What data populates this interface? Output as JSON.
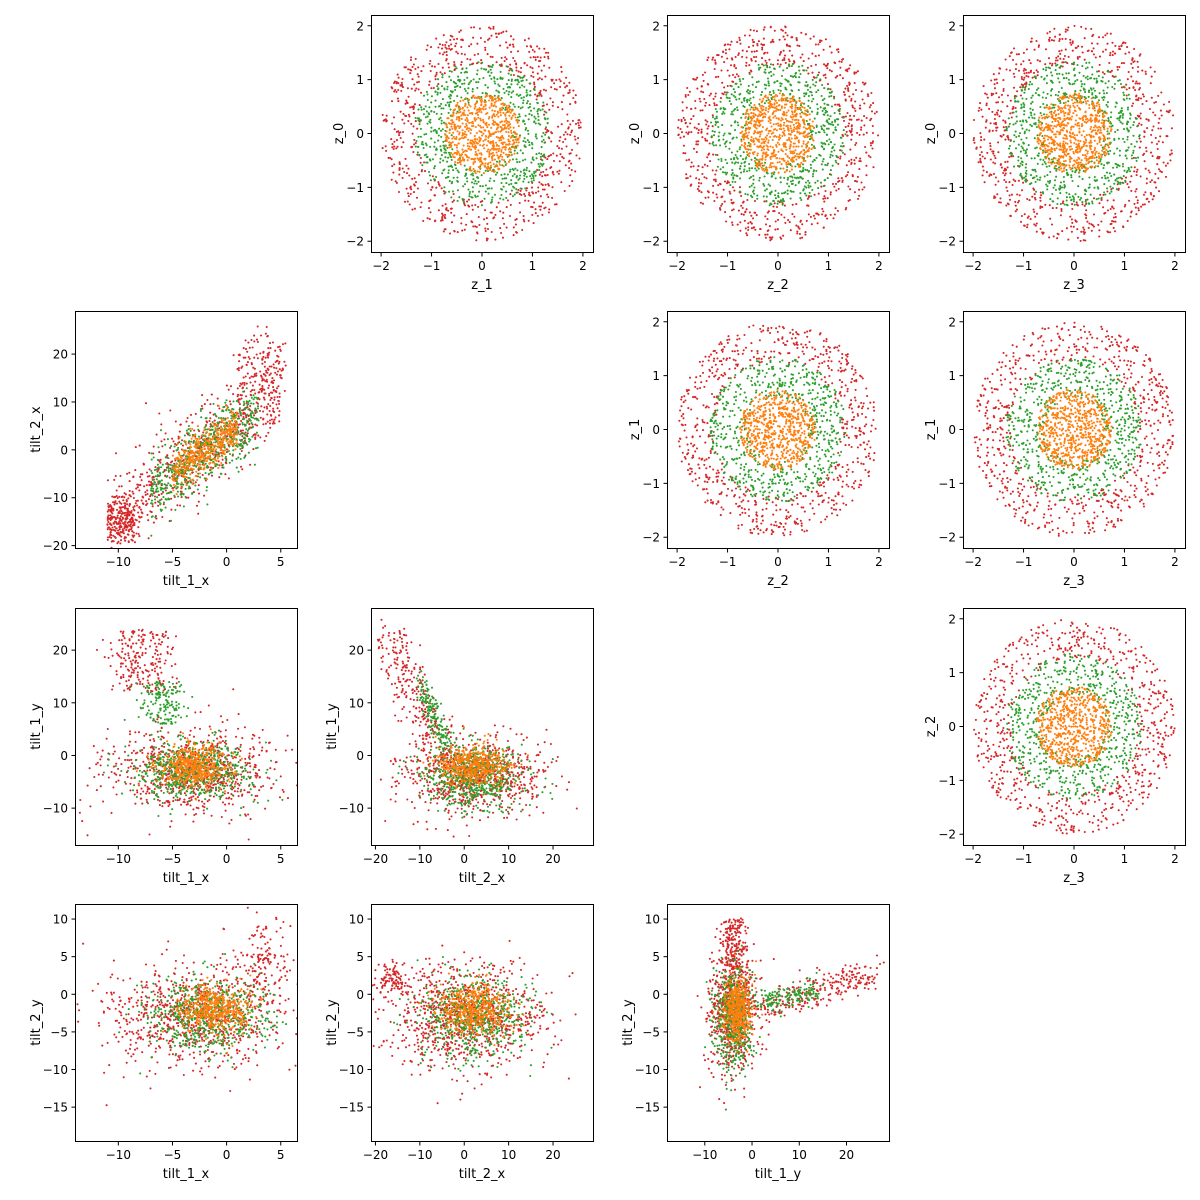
{
  "colors": {
    "outer_ring": "#d62728",
    "middle_ring": "#2ca02c",
    "inner_core": "#ff7f0e"
  },
  "chart_data": [
    {
      "panel": "row0-col1",
      "type": "scatter",
      "xlabel": "z_1",
      "ylabel": "z_0",
      "xlim": [
        -2.2,
        2.2
      ],
      "ylim": [
        -2.2,
        2.2
      ],
      "xticks": [
        -2,
        -1,
        0,
        1,
        2
      ],
      "yticks": [
        -2,
        -1,
        0,
        1,
        2
      ],
      "xtick_labels": [
        "−2",
        "−1",
        "0",
        "1",
        "2"
      ],
      "ytick_labels": [
        "−2",
        "−1",
        "0",
        "1",
        "2"
      ],
      "distribution": "ring",
      "seed": 11
    },
    {
      "panel": "row0-col2",
      "type": "scatter",
      "xlabel": "z_2",
      "ylabel": "z_0",
      "xlim": [
        -2.2,
        2.2
      ],
      "ylim": [
        -2.2,
        2.2
      ],
      "xticks": [
        -2,
        -1,
        0,
        1,
        2
      ],
      "yticks": [
        -2,
        -1,
        0,
        1,
        2
      ],
      "xtick_labels": [
        "−2",
        "−1",
        "0",
        "1",
        "2"
      ],
      "ytick_labels": [
        "−2",
        "−1",
        "0",
        "1",
        "2"
      ],
      "distribution": "ring",
      "seed": 12
    },
    {
      "panel": "row0-col3",
      "type": "scatter",
      "xlabel": "z_3",
      "ylabel": "z_0",
      "xlim": [
        -2.2,
        2.2
      ],
      "ylim": [
        -2.2,
        2.2
      ],
      "xticks": [
        -2,
        -1,
        0,
        1,
        2
      ],
      "yticks": [
        -2,
        -1,
        0,
        1,
        2
      ],
      "xtick_labels": [
        "−2",
        "−1",
        "0",
        "1",
        "2"
      ],
      "ytick_labels": [
        "−2",
        "−1",
        "0",
        "1",
        "2"
      ],
      "distribution": "ring",
      "seed": 13
    },
    {
      "panel": "row1-col0",
      "type": "scatter",
      "xlabel": "tilt_1_x",
      "ylabel": "tilt_2_x",
      "xlim": [
        -14,
        6.5
      ],
      "ylim": [
        -20.5,
        29
      ],
      "xticks": [
        -10,
        -5,
        0,
        5
      ],
      "yticks": [
        -20,
        -10,
        0,
        10,
        20
      ],
      "xtick_labels": [
        "−10",
        "−5",
        "0",
        "5"
      ],
      "ytick_labels": [
        "−20",
        "−10",
        "0",
        "10",
        "20"
      ],
      "distribution": "diag",
      "seed": 21
    },
    {
      "panel": "row1-col2",
      "type": "scatter",
      "xlabel": "z_2",
      "ylabel": "z_1",
      "xlim": [
        -2.2,
        2.2
      ],
      "ylim": [
        -2.2,
        2.2
      ],
      "xticks": [
        -2,
        -1,
        0,
        1,
        2
      ],
      "yticks": [
        -2,
        -1,
        0,
        1,
        2
      ],
      "xtick_labels": [
        "−2",
        "−1",
        "0",
        "1",
        "2"
      ],
      "ytick_labels": [
        "−2",
        "−1",
        "0",
        "1",
        "2"
      ],
      "distribution": "ring",
      "seed": 22
    },
    {
      "panel": "row1-col3",
      "type": "scatter",
      "xlabel": "z_3",
      "ylabel": "z_1",
      "xlim": [
        -2.2,
        2.2
      ],
      "ylim": [
        -2.2,
        2.2
      ],
      "xticks": [
        -2,
        -1,
        0,
        1,
        2
      ],
      "yticks": [
        -2,
        -1,
        0,
        1,
        2
      ],
      "xtick_labels": [
        "−2",
        "−1",
        "0",
        "1",
        "2"
      ],
      "ytick_labels": [
        "−2",
        "−1",
        "0",
        "1",
        "2"
      ],
      "distribution": "ring",
      "seed": 23
    },
    {
      "panel": "row2-col0",
      "type": "scatter",
      "xlabel": "tilt_1_x",
      "ylabel": "tilt_1_y",
      "xlim": [
        -14,
        6.5
      ],
      "ylim": [
        -17,
        28
      ],
      "xticks": [
        -10,
        -5,
        0,
        5
      ],
      "yticks": [
        -10,
        0,
        10,
        20
      ],
      "xtick_labels": [
        "−10",
        "−5",
        "0",
        "5"
      ],
      "ytick_labels": [
        "−10",
        "0",
        "10",
        "20"
      ],
      "distribution": "plume1",
      "seed": 31
    },
    {
      "panel": "row2-col1",
      "type": "scatter",
      "xlabel": "tilt_2_x",
      "ylabel": "tilt_1_y",
      "xlim": [
        -21,
        29
      ],
      "ylim": [
        -17,
        28
      ],
      "xticks": [
        -20,
        -10,
        0,
        10,
        20
      ],
      "yticks": [
        -10,
        0,
        10,
        20
      ],
      "xtick_labels": [
        "−20",
        "−10",
        "0",
        "10",
        "20"
      ],
      "ytick_labels": [
        "−10",
        "0",
        "10",
        "20"
      ],
      "distribution": "plume2",
      "seed": 32
    },
    {
      "panel": "row2-col3",
      "type": "scatter",
      "xlabel": "z_3",
      "ylabel": "z_2",
      "xlim": [
        -2.2,
        2.2
      ],
      "ylim": [
        -2.2,
        2.2
      ],
      "xticks": [
        -2,
        -1,
        0,
        1,
        2
      ],
      "yticks": [
        -2,
        -1,
        0,
        1,
        2
      ],
      "xtick_labels": [
        "−2",
        "−1",
        "0",
        "1",
        "2"
      ],
      "ytick_labels": [
        "−2",
        "−1",
        "0",
        "1",
        "2"
      ],
      "distribution": "ring",
      "seed": 33
    },
    {
      "panel": "row3-col0",
      "type": "scatter",
      "xlabel": "tilt_1_x",
      "ylabel": "tilt_2_y",
      "xlim": [
        -14,
        6.5
      ],
      "ylim": [
        -19.5,
        12
      ],
      "xticks": [
        -10,
        -5,
        0,
        5
      ],
      "yticks": [
        -15,
        -10,
        -5,
        0,
        5,
        10
      ],
      "xtick_labels": [
        "−10",
        "−5",
        "0",
        "5"
      ],
      "ytick_labels": [
        "−15",
        "−10",
        "−5",
        "0",
        "5",
        "10"
      ],
      "distribution": "blobA",
      "seed": 41
    },
    {
      "panel": "row3-col1",
      "type": "scatter",
      "xlabel": "tilt_2_x",
      "ylabel": "tilt_2_y",
      "xlim": [
        -21,
        29
      ],
      "ylim": [
        -19.5,
        12
      ],
      "xticks": [
        -20,
        -10,
        0,
        10,
        20
      ],
      "yticks": [
        -15,
        -10,
        -5,
        0,
        5,
        10
      ],
      "xtick_labels": [
        "−20",
        "−10",
        "0",
        "10",
        "20"
      ],
      "ytick_labels": [
        "−15",
        "−10",
        "−5",
        "0",
        "5",
        "10"
      ],
      "distribution": "blobB",
      "seed": 42
    },
    {
      "panel": "row3-col2",
      "type": "scatter",
      "xlabel": "tilt_1_y",
      "ylabel": "tilt_2_y",
      "xlim": [
        -18,
        29
      ],
      "ylim": [
        -19.5,
        12
      ],
      "xticks": [
        -10,
        0,
        10,
        20
      ],
      "yticks": [
        -15,
        -10,
        -5,
        0,
        5,
        10
      ],
      "xtick_labels": [
        "−10",
        "0",
        "10",
        "20"
      ],
      "ytick_labels": [
        "−15",
        "−10",
        "−5",
        "0",
        "5",
        "10"
      ],
      "distribution": "arm",
      "seed": 43
    }
  ]
}
